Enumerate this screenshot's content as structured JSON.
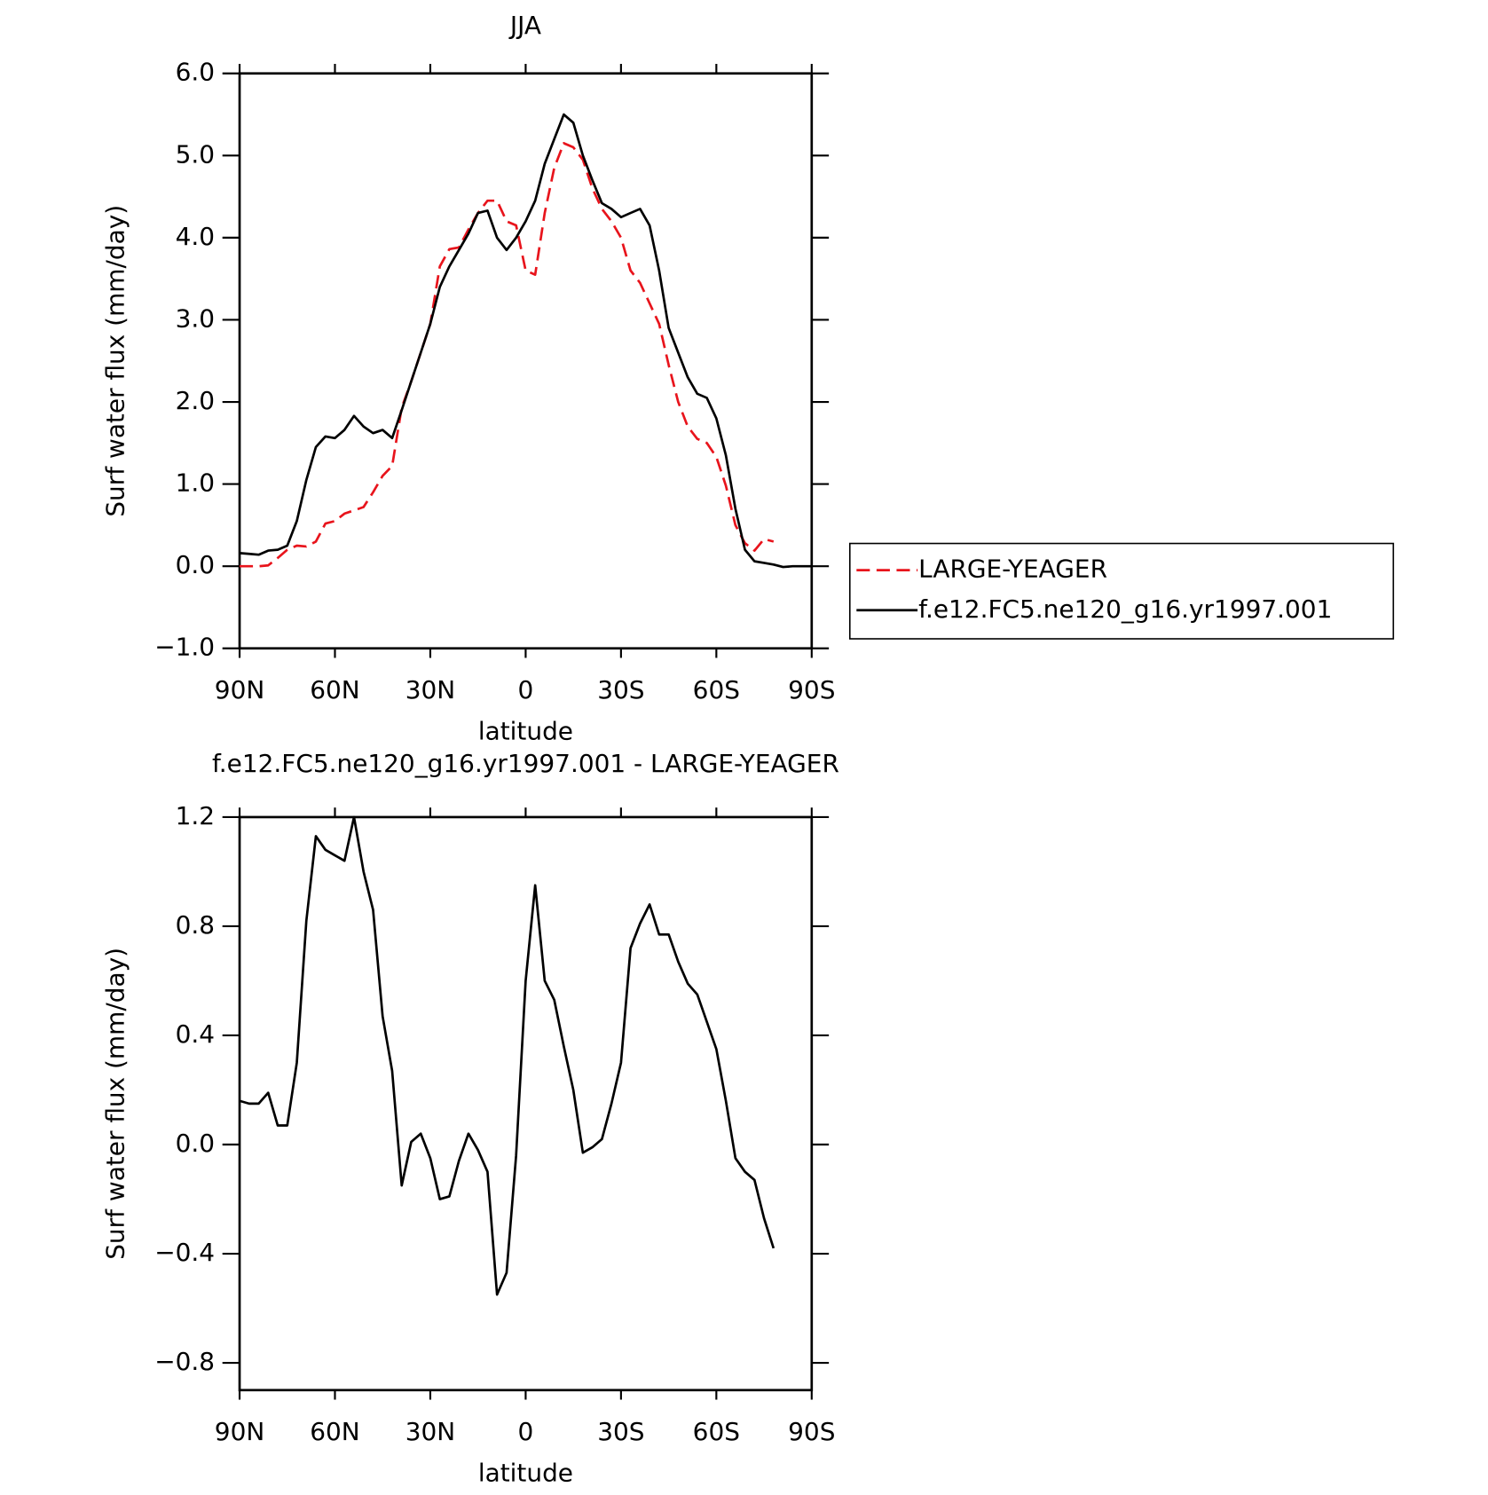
{
  "chart_data": [
    {
      "type": "line",
      "title": "JJA",
      "xlabel": "latitude",
      "ylabel": "Surf water flux (mm/day)",
      "x": [
        90,
        87,
        84,
        81,
        78,
        75,
        72,
        69,
        66,
        63,
        60,
        57,
        54,
        51,
        48,
        45,
        42,
        39,
        36,
        33,
        30,
        27,
        24,
        21,
        18,
        15,
        12,
        9,
        6,
        3,
        0,
        -3,
        -6,
        -9,
        -12,
        -15,
        -18,
        -21,
        -24,
        -27,
        -30,
        -33,
        -36,
        -39,
        -42,
        -45,
        -48,
        -51,
        -54,
        -57,
        -60,
        -63,
        -66,
        -69,
        -72,
        -75,
        -78,
        -81,
        -84,
        -87,
        -90
      ],
      "xlim": [
        90,
        -90
      ],
      "xticks": [
        {
          "value": 90,
          "label": "90N"
        },
        {
          "value": 60,
          "label": "60N"
        },
        {
          "value": 30,
          "label": "30N"
        },
        0,
        {
          "value": -30,
          "label": "30S"
        },
        {
          "value": -60,
          "label": "60S"
        },
        {
          "value": -90,
          "label": "90S"
        }
      ],
      "ylim": [
        -1,
        6
      ],
      "yticks": [
        {
          "value": -1,
          "label": "−1.0"
        },
        {
          "value": 0,
          "label": "0.0"
        },
        {
          "value": 1,
          "label": "1.0"
        },
        {
          "value": 2,
          "label": "2.0"
        },
        {
          "value": 3,
          "label": "3.0"
        },
        {
          "value": 4,
          "label": "4.0"
        },
        {
          "value": 5,
          "label": "5.0"
        },
        {
          "value": 6,
          "label": "6.0"
        }
      ],
      "legend": "right",
      "series": [
        {
          "name": "LARGE-YEAGER",
          "color": "#e8141c",
          "dash": true,
          "values": [
            0,
            0,
            0,
            0.01,
            0.1,
            0.2,
            0.25,
            0.24,
            0.3,
            0.52,
            0.55,
            0.64,
            0.68,
            0.72,
            0.9,
            1.1,
            1.22,
            1.93,
            2.25,
            2.6,
            2.95,
            3.65,
            3.86,
            3.88,
            4.1,
            4.3,
            4.45,
            4.45,
            4.2,
            4.15,
            3.6,
            3.55,
            4.3,
            4.85,
            5.15,
            5.1,
            4.95,
            4.6,
            4.35,
            4.2,
            4.0,
            3.6,
            3.45,
            3.2,
            2.95,
            2.45,
            2.0,
            1.7,
            1.55,
            1.5,
            1.33,
            0.98,
            0.5,
            0.28,
            0.19,
            0.33,
            0.3,
            null,
            null,
            null,
            null
          ]
        },
        {
          "name": "f.e12.FC5.ne120_g16.yr1997.001",
          "color": "#000000",
          "dash": false,
          "values": [
            0.16,
            0.15,
            0.14,
            0.19,
            0.2,
            0.25,
            0.55,
            1.05,
            1.45,
            1.58,
            1.56,
            1.66,
            1.83,
            1.7,
            1.62,
            1.66,
            1.56,
            1.9,
            2.25,
            2.6,
            2.95,
            3.4,
            3.65,
            3.85,
            4.05,
            4.3,
            4.33,
            4.0,
            3.85,
            4.0,
            4.2,
            4.45,
            4.9,
            5.2,
            5.5,
            5.4,
            5.0,
            4.7,
            4.42,
            4.35,
            4.25,
            4.3,
            4.35,
            4.15,
            3.6,
            2.9,
            2.6,
            2.3,
            2.1,
            2.05,
            1.8,
            1.35,
            0.7,
            0.2,
            0.06,
            0.04,
            0.02,
            -0.01,
            0,
            0,
            0
          ]
        }
      ]
    },
    {
      "type": "line",
      "title": "f.e12.FC5.ne120_g16.yr1997.001 - LARGE-YEAGER",
      "xlabel": "latitude",
      "ylabel": "Surf water flux (mm/day)",
      "x": [
        90,
        87,
        84,
        81,
        78,
        75,
        72,
        69,
        66,
        63,
        60,
        57,
        54,
        51,
        48,
        45,
        42,
        39,
        36,
        33,
        30,
        27,
        24,
        21,
        18,
        15,
        12,
        9,
        6,
        3,
        0,
        -3,
        -6,
        -9,
        -12,
        -15,
        -18,
        -21,
        -24,
        -27,
        -30,
        -33,
        -36,
        -39,
        -42,
        -45,
        -48,
        -51,
        -54,
        -57,
        -60,
        -63,
        -66,
        -69,
        -72,
        -75,
        -78,
        -81,
        -84,
        -87,
        -90
      ],
      "xlim": [
        90,
        -90
      ],
      "xticks": [
        {
          "value": 90,
          "label": "90N"
        },
        {
          "value": 60,
          "label": "60N"
        },
        {
          "value": 30,
          "label": "30N"
        },
        0,
        {
          "value": -30,
          "label": "30S"
        },
        {
          "value": -60,
          "label": "60S"
        },
        {
          "value": -90,
          "label": "90S"
        }
      ],
      "ylim": [
        -0.9,
        1.2
      ],
      "yticks": [
        {
          "value": -0.8,
          "label": "−0.8"
        },
        {
          "value": -0.4,
          "label": "−0.4"
        },
        {
          "value": 0,
          "label": "0.0"
        },
        0.4,
        0.8,
        1.2
      ],
      "series": [
        {
          "color": "#000000",
          "dash": false,
          "values": [
            0.16,
            0.15,
            0.15,
            0.19,
            0.07,
            0.07,
            0.3,
            0.82,
            1.13,
            1.08,
            1.06,
            1.04,
            1.2,
            1.0,
            0.86,
            0.47,
            0.27,
            -0.15,
            0.01,
            0.04,
            -0.05,
            -0.2,
            -0.19,
            -0.06,
            0.04,
            -0.02,
            -0.1,
            -0.55,
            -0.47,
            -0.04,
            0.6,
            0.95,
            0.6,
            0.53,
            0.36,
            0.2,
            -0.03,
            -0.01,
            0.02,
            0.15,
            0.3,
            0.72,
            0.81,
            0.88,
            0.77,
            0.77,
            0.67,
            0.59,
            0.55,
            0.45,
            0.35,
            0.16,
            -0.05,
            -0.1,
            -0.13,
            -0.27,
            -0.38,
            null,
            null,
            null,
            null
          ]
        }
      ]
    }
  ]
}
